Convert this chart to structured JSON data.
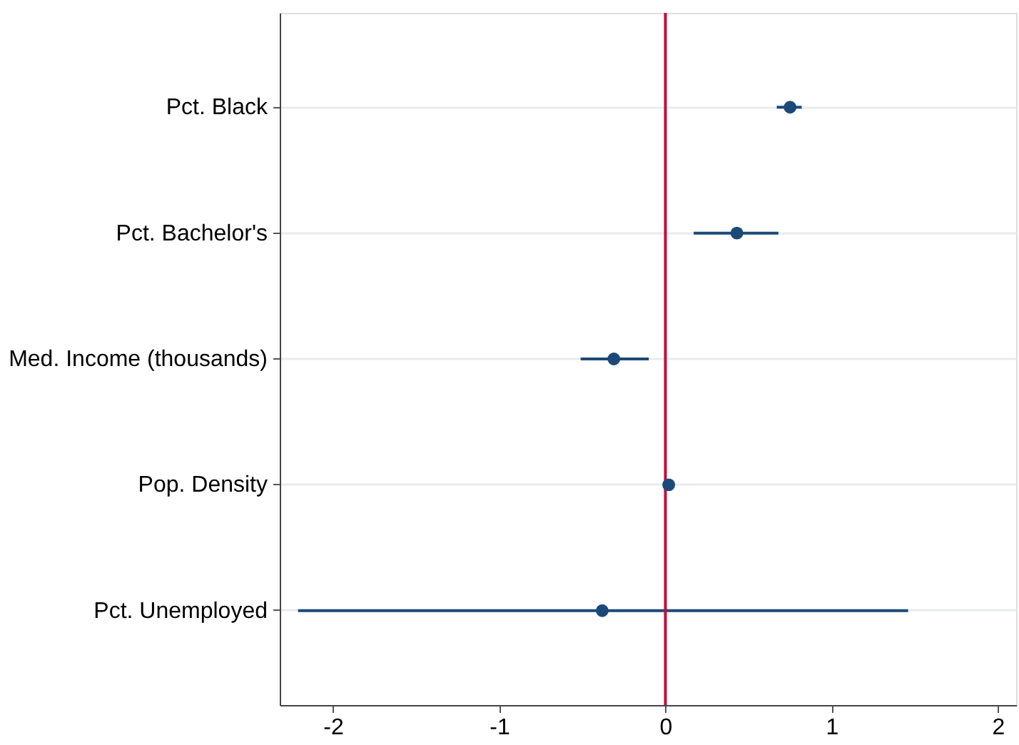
{
  "chart_data": {
    "type": "scatter",
    "orientation": "horizontal",
    "categories": [
      "Pct. Black",
      "Pct. Bachelor's",
      "Med. Income (thousands)",
      "Pop. Density",
      "Pct. Unemployed"
    ],
    "values": [
      0.75,
      0.43,
      -0.31,
      0.02,
      -0.38
    ],
    "errors": [
      [
        0.67,
        0.82
      ],
      [
        0.17,
        0.68
      ],
      [
        -0.51,
        -0.1
      ],
      null,
      [
        -2.21,
        1.46
      ]
    ],
    "color": "#1b4a78",
    "marker": "circle",
    "xlim": [
      -2.32,
      2.11
    ],
    "xticks": [
      -2,
      -1,
      0,
      1,
      2
    ],
    "ref_lines": [
      {
        "axis": "x",
        "value": 0,
        "color": "#c0103a"
      }
    ],
    "grid": "y"
  }
}
